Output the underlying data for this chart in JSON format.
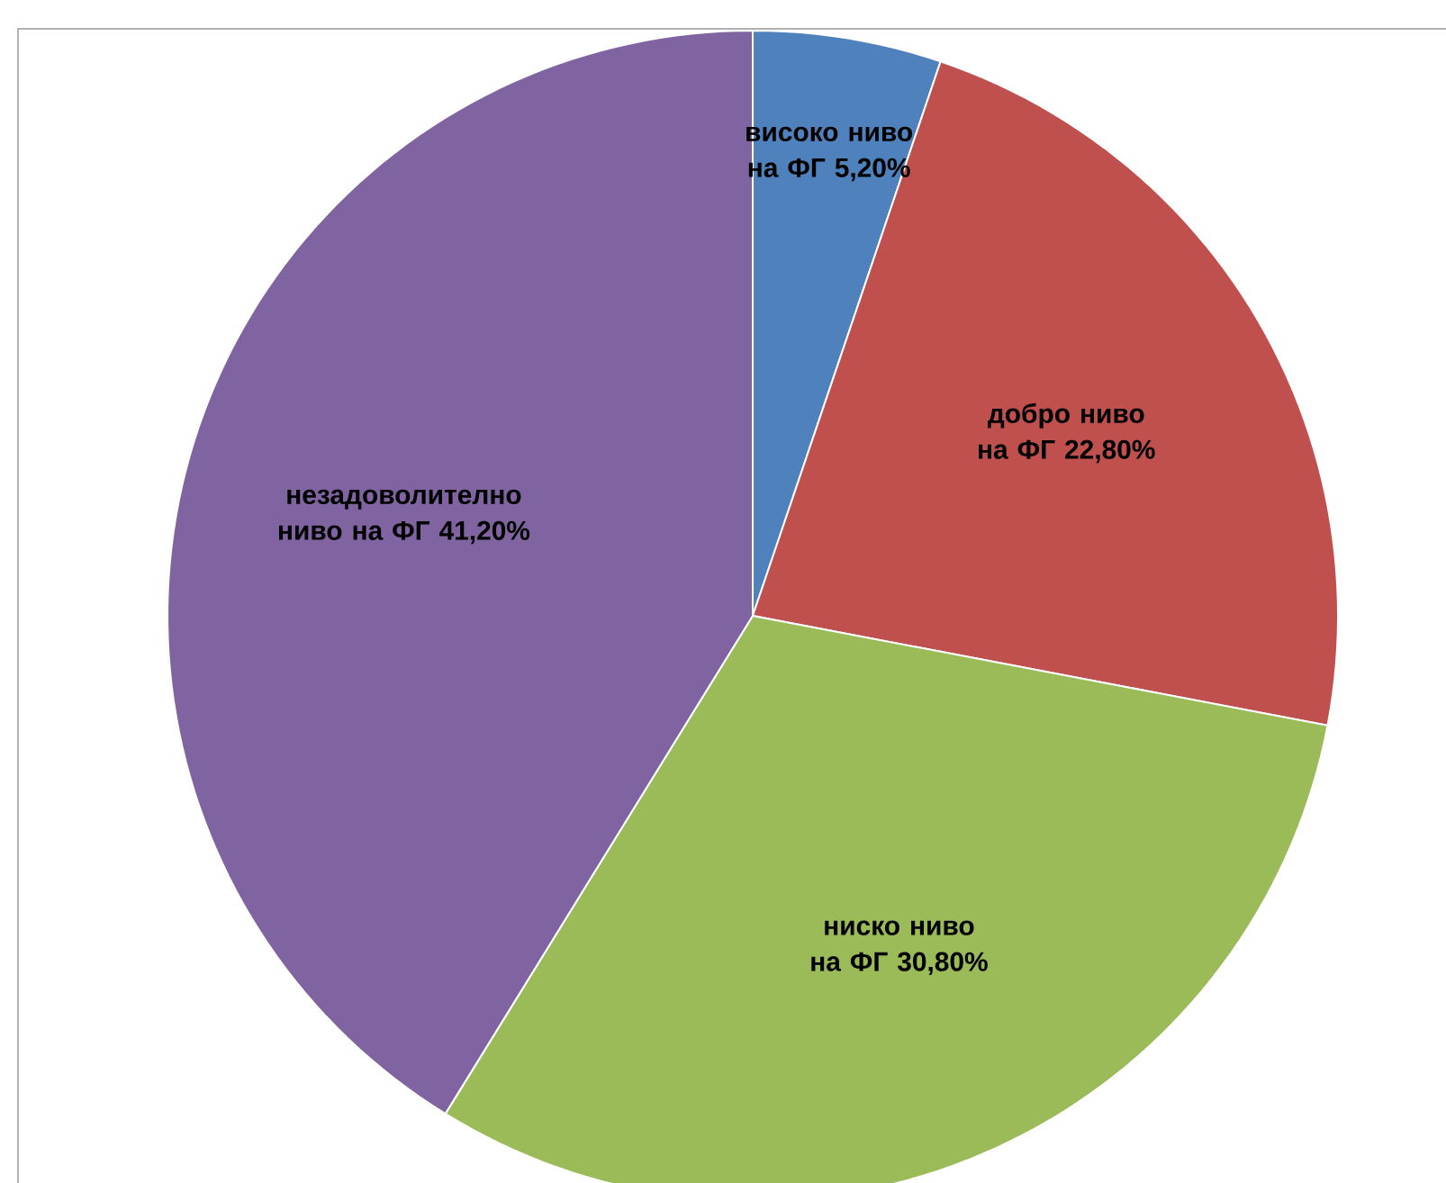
{
  "chart_data": {
    "type": "pie",
    "categories": [
      "високо ниво на ФГ",
      "добро ниво на ФГ",
      "ниско ниво на ФГ",
      "незадоволително ниво на ФГ"
    ],
    "values": [
      5.2,
      22.8,
      30.8,
      41.2
    ],
    "value_labels": [
      "5,20%",
      "22,80%",
      "30,80%",
      "41,20%"
    ],
    "colors": [
      "#4f81bd",
      "#c0504d",
      "#9bbb59",
      "#8064a2"
    ],
    "legend": false
  }
}
